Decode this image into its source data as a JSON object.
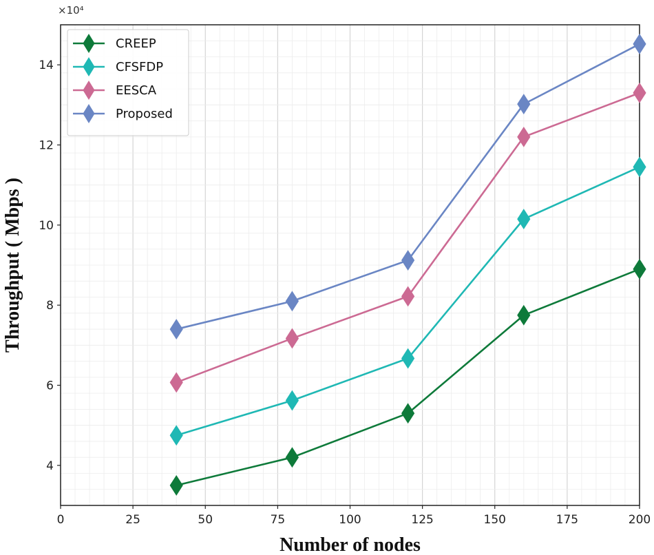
{
  "chart_data": {
    "type": "line",
    "title": "",
    "xlabel": "Number of nodes",
    "ylabel": "Throughput ( Mbps )",
    "y_multiplier_label": "×10⁴",
    "xlim": [
      0,
      200
    ],
    "ylim": [
      3,
      15
    ],
    "x_ticks": [
      0,
      25,
      50,
      75,
      100,
      125,
      150,
      175,
      200
    ],
    "y_ticks": [
      4,
      6,
      8,
      10,
      12,
      14
    ],
    "grid": true,
    "legend_position": "top-left",
    "x": [
      40,
      80,
      120,
      160,
      200
    ],
    "series": [
      {
        "name": "CREEP",
        "color": "#0e7a3a",
        "values": [
          3.5,
          4.2,
          5.3,
          7.75,
          8.9
        ]
      },
      {
        "name": "CFSFDP",
        "color": "#1fb8b4",
        "values": [
          4.75,
          5.62,
          6.67,
          10.15,
          11.45
        ]
      },
      {
        "name": "EESCA",
        "color": "#cc6a93",
        "values": [
          6.07,
          7.17,
          8.22,
          12.2,
          13.3
        ]
      },
      {
        "name": "Proposed",
        "color": "#6a86c4",
        "values": [
          7.4,
          8.1,
          9.12,
          13.02,
          14.52
        ]
      }
    ]
  }
}
